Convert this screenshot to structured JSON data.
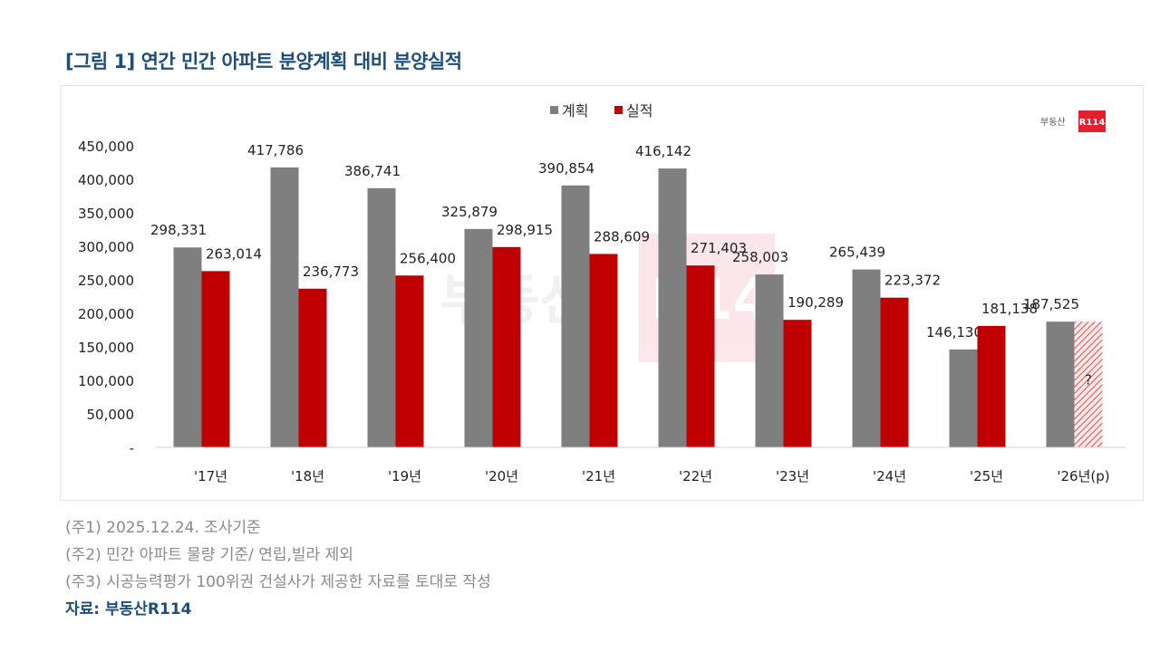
{
  "title": "[그림 1] 연간 민간 아파트 분양계획 대비 분양실적",
  "logo": {
    "text": "부동산",
    "badge": "R114"
  },
  "watermark": "부동산 R114",
  "colors": {
    "plan": "#7f7f7f",
    "actual": "#c00000",
    "title": "#1f4e79"
  },
  "chart_data": {
    "type": "bar",
    "categories": [
      "'17년",
      "'18년",
      "'19년",
      "'20년",
      "'21년",
      "'22년",
      "'23년",
      "'24년",
      "'25년",
      "'26년(p)"
    ],
    "series": [
      {
        "name": "계획",
        "values": [
          298331,
          417786,
          386741,
          325879,
          390854,
          416142,
          258003,
          265439,
          146130,
          187525
        ],
        "labels": [
          "298,331",
          "417,786",
          "386,741",
          "325,879",
          "390,854",
          "416,142",
          "258,003",
          "265,439",
          "146,130",
          "187,525"
        ]
      },
      {
        "name": "실적",
        "values": [
          263014,
          236773,
          256400,
          298915,
          288609,
          271403,
          190289,
          223372,
          181138,
          null
        ],
        "labels": [
          "263,014",
          "236,773",
          "256,400",
          "298,915",
          "288,609",
          "271,403",
          "190,289",
          "223,372",
          "181,138",
          "?"
        ]
      }
    ],
    "ylim": [
      0,
      450000
    ],
    "yticks": [
      0,
      50000,
      100000,
      150000,
      200000,
      250000,
      300000,
      350000,
      400000,
      450000
    ],
    "ytick_labels": [
      "-",
      "50,000",
      "100,000",
      "150,000",
      "200,000",
      "250,000",
      "300,000",
      "350,000",
      "400,000",
      "450,000"
    ],
    "legend_position": "top-center",
    "grid": false
  },
  "notes": [
    "(주1) 2025.12.24. 조사기준",
    "(주2) 민간 아파트 물량 기준/ 연립,빌라 제외",
    "(주3) 시공능력평가 100위권 건설사가 제공한 자료를 토대로 작성"
  ],
  "source": "자료: 부동산R114"
}
